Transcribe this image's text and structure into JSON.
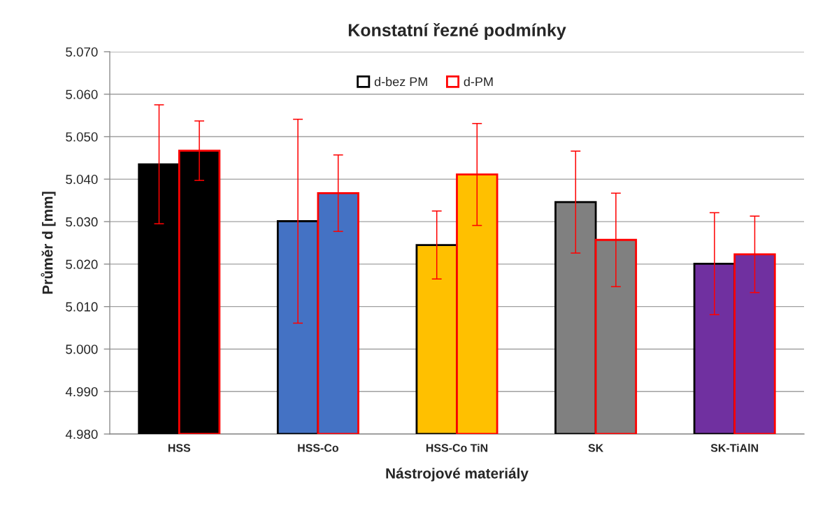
{
  "chart_data": {
    "type": "bar",
    "title": "Konstatní řezné podmínky",
    "xlabel": "Nástrojové materiály",
    "ylabel": "Průměr d [mm]",
    "categories": [
      "HSS",
      "HSS-Co",
      "HSS-Co TiN",
      "SK",
      "SK-TiAlN"
    ],
    "series": [
      {
        "name": "d-bez PM",
        "color": "#000000",
        "colors": [
          "#000000",
          "#4472c4",
          "#ffc000",
          "#808080",
          "#7030a0"
        ],
        "values": [
          5.0435,
          5.0301,
          5.0245,
          5.0346,
          5.0201
        ],
        "errors": [
          0.014,
          0.024,
          0.008,
          0.012,
          0.012
        ]
      },
      {
        "name": "d-PM",
        "color": "#ff0000",
        "colors": [
          "#000000",
          "#4472c4",
          "#ffc000",
          "#808080",
          "#7030a0"
        ],
        "values": [
          5.0467,
          5.0367,
          5.0411,
          5.0257,
          5.0223
        ],
        "errors": [
          0.007,
          0.009,
          0.012,
          0.011,
          0.009
        ]
      }
    ],
    "ylim": [
      4.98,
      5.07
    ],
    "yticks": [
      {
        "value": 4.98,
        "label": "4.980"
      },
      {
        "value": 4.99,
        "label": "4.990"
      },
      {
        "value": 5.0,
        "label": "5.000"
      },
      {
        "value": 5.01,
        "label": "5.010"
      },
      {
        "value": 5.02,
        "label": "5.020"
      },
      {
        "value": 5.03,
        "label": "5.030"
      },
      {
        "value": 5.04,
        "label": "5.040"
      },
      {
        "value": 5.05,
        "label": "5.050"
      },
      {
        "value": 5.06,
        "label": "5.060"
      },
      {
        "value": 5.07,
        "label": "5.070"
      }
    ],
    "grid": "y",
    "legend": "top"
  }
}
